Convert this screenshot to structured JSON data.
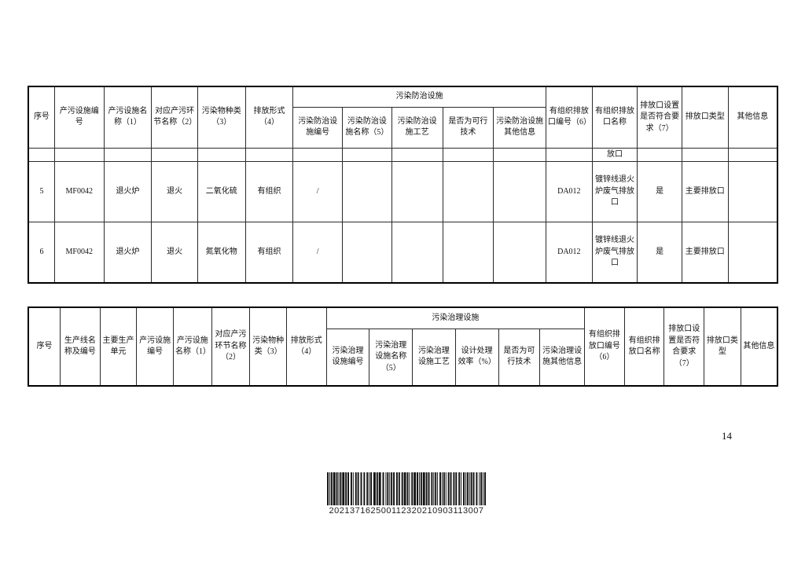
{
  "page": {
    "number": "14"
  },
  "table1": {
    "group_header": "污染防治设施",
    "headers": {
      "seq": "序号",
      "facility_code": "产污设施编号",
      "facility_name": "产污设施名称（1）",
      "process_name": "对应产污环节名称（2）",
      "pollutant_type": "污染物种类（3）",
      "discharge_form": "排放形式（4）",
      "control_code": "污染防治设施编号",
      "control_name": "污染防治设施名称（5）",
      "control_process": "污染防治设施工艺",
      "feasible_tech": "是否为可行技术",
      "control_other": "污染防治设施其他信息",
      "outlet_code": "有组织排放口编号（6）",
      "outlet_name": "有组织排放口名称",
      "outlet_compliant": "排放口设置是否符合要求（7）",
      "outlet_type": "排放口类型",
      "other_info": "其他信息"
    },
    "partial_row": {
      "outlet_name": "放口"
    },
    "rows": [
      [
        "5",
        "MF0042",
        "退火炉",
        "退火",
        "二氧化硫",
        "有组织",
        "/",
        "",
        "",
        "",
        "",
        "DA012",
        "镀锌线退火炉废气排放口",
        "是",
        "主要排放口",
        ""
      ],
      [
        "6",
        "MF0042",
        "退火炉",
        "退火",
        "氮氧化物",
        "有组织",
        "/",
        "",
        "",
        "",
        "",
        "DA012",
        "镀锌线退火炉废气排放口",
        "是",
        "主要排放口",
        ""
      ]
    ]
  },
  "table2": {
    "group_header": "污染治理设施",
    "headers": {
      "seq": "序号",
      "line_name": "生产线名称及编号",
      "prod_unit": "主要生产单元",
      "facility_code": "产污设施编号",
      "facility_name": "产污设施名称（1）",
      "process_name": "对应产污环节名称（2）",
      "pollutant_type": "污染物种类（3）",
      "discharge_form": "排放形式（4）",
      "treat_code": "污染治理设施编号",
      "treat_name": "污染治理设施名称（5）",
      "treat_process": "污染治理设施工艺",
      "design_eff": "设计处理效率（%）",
      "feasible_tech": "是否为可行技术",
      "treat_other": "污染治理设施其他信息",
      "outlet_code": "有组织排放口编号（6）",
      "outlet_name": "有组织排放口名称",
      "outlet_compliant": "排放口设置是否符合要求（7）",
      "outlet_type": "排放口类型",
      "other_info": "其他信息"
    }
  },
  "barcode": {
    "value": "202137162500112320210903113007"
  }
}
